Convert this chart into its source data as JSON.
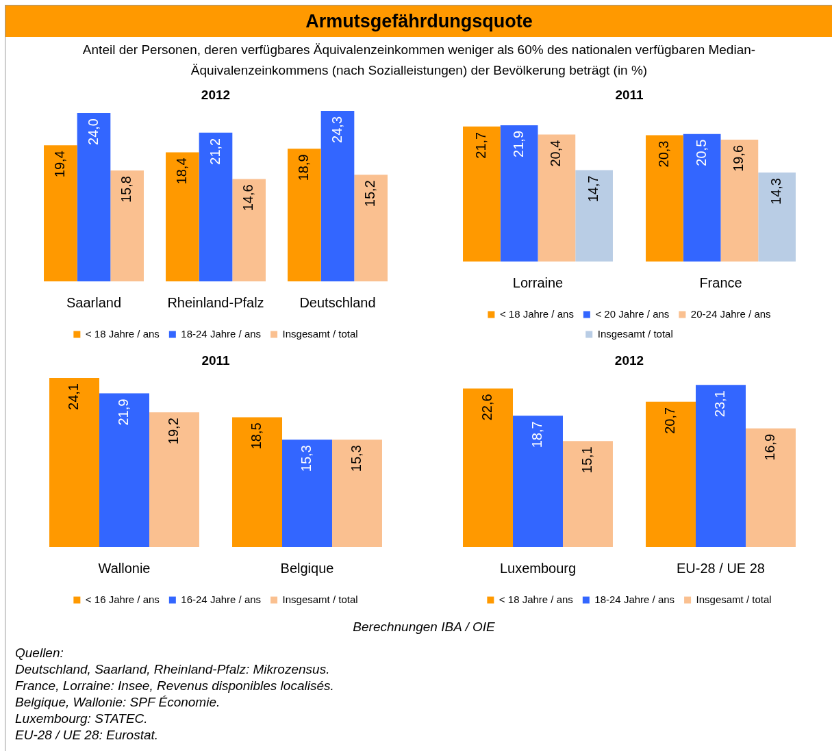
{
  "chart_data": [
    {
      "type": "other",
      "title": "Armutsgefährdungsquote",
      "subtitle": "Anteil der Personen, deren verfügbares Äquivalenzeinkommen weniger als 60% des nationalen verfügbaren Median-Äquivalenzeinkommens (nach Sozialleistungen) der Bevölkerung beträgt (in %)"
    },
    {
      "type": "bar",
      "title": "2012",
      "categories": [
        "Saarland",
        "Rheinland-Pfalz",
        "Deutschland"
      ],
      "tick_labels": "x",
      "legend": "bottom",
      "series": [
        {
          "name": "< 18 Jahre / ans",
          "color": "#ff9900",
          "values": [
            19.4,
            18.4,
            18.9
          ],
          "value_labels": [
            "19,4",
            "18,4",
            "18,9"
          ]
        },
        {
          "name": "18-24 Jahre / ans",
          "color": "#3366ff",
          "values": [
            24.0,
            21.2,
            24.3
          ],
          "value_labels": [
            "24,0",
            "21,2",
            "24,3"
          ]
        },
        {
          "name": "Insgesamt / total",
          "color": "#fac090",
          "values": [
            15.8,
            14.6,
            15.2
          ],
          "value_labels": [
            "15,8",
            "14,6",
            "15,2"
          ]
        }
      ]
    },
    {
      "type": "bar",
      "title": "2011",
      "categories": [
        "Lorraine",
        "France"
      ],
      "tick_labels": "x",
      "legend": "bottom",
      "series": [
        {
          "name": "< 18 Jahre / ans",
          "color": "#ff9900",
          "values": [
            21.7,
            20.3
          ],
          "value_labels": [
            "21,7",
            "20,3"
          ]
        },
        {
          "name": "< 20 Jahre / ans",
          "color": "#3366ff",
          "values": [
            21.9,
            20.5
          ],
          "value_labels": [
            "21,9",
            "20,5"
          ]
        },
        {
          "name": "20-24 Jahre / ans",
          "color": "#fac090",
          "values": [
            20.4,
            19.6
          ],
          "value_labels": [
            "20,4",
            "19,6"
          ]
        },
        {
          "name": "Insgesamt / total",
          "color": "#b9cde5",
          "values": [
            14.7,
            14.3
          ],
          "value_labels": [
            "14,7",
            "14,3"
          ]
        }
      ]
    },
    {
      "type": "bar",
      "title": "2011",
      "categories": [
        "Wallonie",
        "Belgique"
      ],
      "tick_labels": "x",
      "legend": "bottom",
      "series": [
        {
          "name": "< 16 Jahre / ans",
          "color": "#ff9900",
          "values": [
            24.1,
            18.5
          ],
          "value_labels": [
            "24,1",
            "18,5"
          ]
        },
        {
          "name": "16-24 Jahre / ans",
          "color": "#3366ff",
          "values": [
            21.9,
            15.3
          ],
          "value_labels": [
            "21,9",
            "15,3"
          ]
        },
        {
          "name": "Insgesamt / total",
          "color": "#fac090",
          "values": [
            19.2,
            15.3
          ],
          "value_labels": [
            "19,2",
            "15,3"
          ]
        }
      ]
    },
    {
      "type": "bar",
      "title": "2012",
      "categories": [
        "Luxembourg",
        "EU-28 / UE 28"
      ],
      "tick_labels": "x",
      "legend": "bottom",
      "series": [
        {
          "name": "< 18 Jahre / ans",
          "color": "#ff9900",
          "values": [
            22.6,
            20.7
          ],
          "value_labels": [
            "22,6",
            "20,7"
          ]
        },
        {
          "name": "18-24 Jahre / ans",
          "color": "#3366ff",
          "values": [
            18.7,
            23.1
          ],
          "value_labels": [
            "18,7",
            "23,1"
          ]
        },
        {
          "name": "Insgesamt / total",
          "color": "#fac090",
          "values": [
            15.1,
            16.9
          ],
          "value_labels": [
            "15,1",
            "16,9"
          ]
        }
      ]
    },
    {
      "type": "other",
      "annotations": [
        "Berechnungen IBA / OIE",
        "Quellen:",
        "Deutschland, Saarland, Rheinland-Pfalz: Mikrozensus.",
        "France, Lorraine: Insee, Revenus disponibles localisés.",
        "Belgique, Wallonie: SPF Économie.",
        "Luxembourg: STATEC.",
        "EU-28 / UE 28: Eurostat."
      ]
    }
  ]
}
